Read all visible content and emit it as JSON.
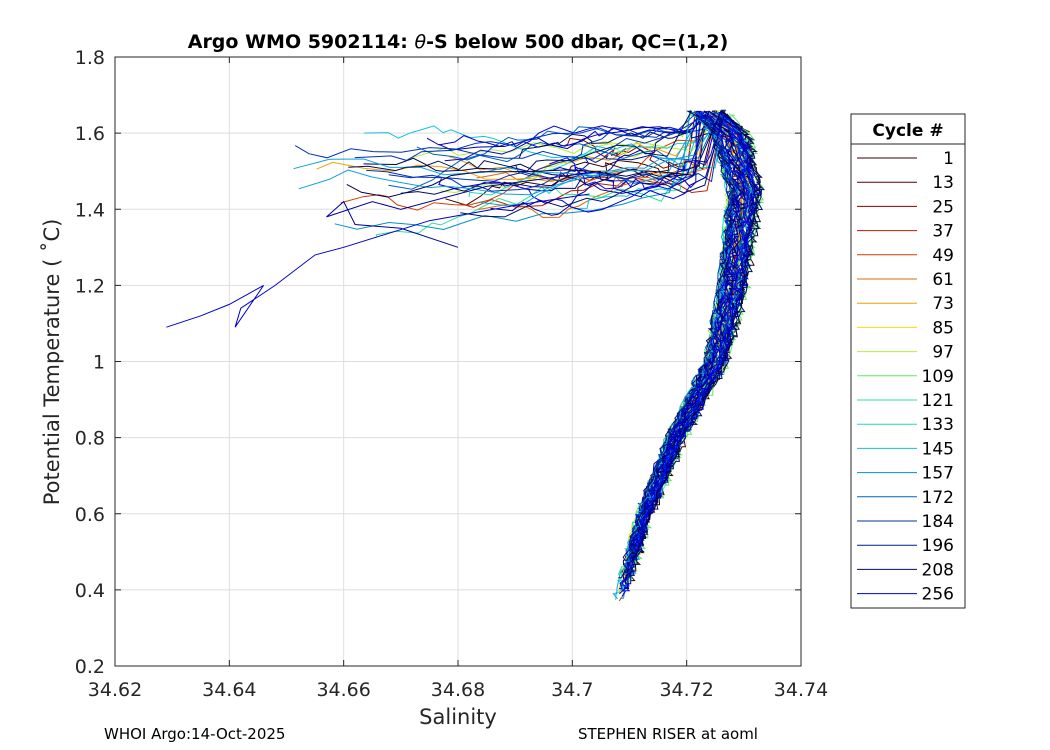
{
  "chart_data": {
    "type": "line",
    "title_pre": "Argo WMO 5902114: ",
    "title_theta": "θ",
    "title_post": "-S below 500 dbar,  QC=(1,2)",
    "xlabel": "Salinity",
    "ylabel": "Potential Temperature ( ˚C)",
    "xlim": [
      34.62,
      34.74
    ],
    "ylim": [
      0.2,
      1.8
    ],
    "x_ticks": [
      34.62,
      34.64,
      34.66,
      34.68,
      34.7,
      34.72,
      34.74
    ],
    "x_tick_labels": [
      "34.62",
      "34.64",
      "34.66",
      "34.68",
      "34.7",
      "34.72",
      "34.74"
    ],
    "y_ticks": [
      0.2,
      0.4,
      0.6,
      0.8,
      1.0,
      1.2,
      1.4,
      1.6,
      1.8
    ],
    "y_tick_labels": [
      "0.2",
      "0.4",
      "0.6",
      "0.8",
      "1",
      "1.2",
      "1.4",
      "1.6",
      "1.8"
    ],
    "grid": true,
    "legend_title": "Cycle #",
    "legend_position": "right-outside",
    "series": [
      {
        "name": "1",
        "color": "#3a0000"
      },
      {
        "name": "13",
        "color": "#5c0000"
      },
      {
        "name": "25",
        "color": "#8a0000"
      },
      {
        "name": "37",
        "color": "#b81a00"
      },
      {
        "name": "49",
        "color": "#d43c00"
      },
      {
        "name": "61",
        "color": "#e06a00"
      },
      {
        "name": "73",
        "color": "#f0a000"
      },
      {
        "name": "85",
        "color": "#f0e000"
      },
      {
        "name": "97",
        "color": "#b4f030"
      },
      {
        "name": "109",
        "color": "#60e860"
      },
      {
        "name": "121",
        "color": "#30e090"
      },
      {
        "name": "133",
        "color": "#20d8c0"
      },
      {
        "name": "145",
        "color": "#10c0e0"
      },
      {
        "name": "157",
        "color": "#0090c8"
      },
      {
        "name": "172",
        "color": "#0060c0"
      },
      {
        "name": "184",
        "color": "#0030b0"
      },
      {
        "name": "196",
        "color": "#001890"
      },
      {
        "name": "208",
        "color": "#000c70"
      },
      {
        "name": "256",
        "color": "#0000d0"
      }
    ],
    "profile_shape": {
      "deep_end": [
        34.708,
        0.37
      ],
      "knee": [
        34.725,
        1.0
      ],
      "max_salinity": [
        34.73,
        1.45
      ],
      "warm_end": [
        34.722,
        1.68
      ],
      "intrusion_min_salinity": [
        34.629,
        1.09
      ]
    }
  },
  "footer": {
    "left": "WHOI Argo:14-Oct-2025",
    "right": "STEPHEN RISER at aoml"
  }
}
